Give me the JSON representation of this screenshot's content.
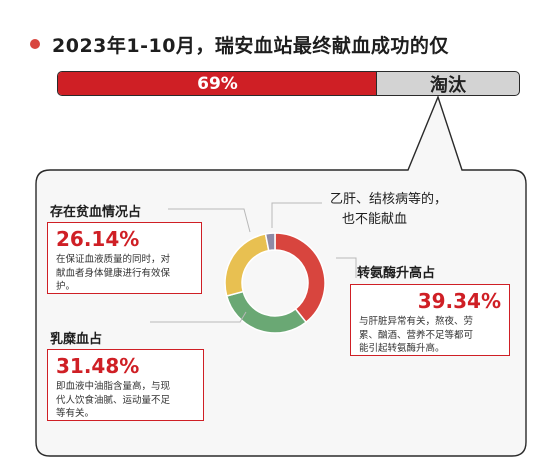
{
  "title": "2023年1-10月，瑞安血站最终献血成功的仅",
  "progress": {
    "success_pct": 69,
    "success_label": "69%",
    "rest_label": "淘汰"
  },
  "chart_data": {
    "type": "pie",
    "title": "",
    "labels": [
      "转氨酶升高占",
      "乳糜血占",
      "存在贫血情况占",
      "乙肝、结核病等的，也不能献血"
    ],
    "values": [
      39.34,
      31.48,
      26.14,
      3.04
    ],
    "value_labels": [
      "39.34%",
      "31.48%",
      "26.14%",
      ""
    ],
    "colors": [
      "#d8453e",
      "#6aa874",
      "#e8c051",
      "#8e8aa6"
    ],
    "donut": true
  },
  "annotations": {
    "anemia": {
      "label": "存在贫血情况占",
      "value": "26.14%",
      "desc_lines": [
        "在保证血液质量的同时，对",
        "献血者身体健康进行有效保",
        "护。"
      ]
    },
    "alt": {
      "label": "转氨酶升高占",
      "value": "39.34%",
      "desc_lines": [
        "与肝脏异常有关，熬夜、劳",
        "累、酗酒、营养不足等都可",
        "能引起转氨酶升高。"
      ]
    },
    "chyle": {
      "label": "乳糜血占",
      "value": "31.48%",
      "desc_lines": [
        "即血液中油脂含量高，与现",
        "代人饮食油腻、运动量不足",
        "等有关。"
      ]
    },
    "other": {
      "lines": [
        "乙肝、结核病等的，",
        "也不能献血"
      ]
    }
  }
}
